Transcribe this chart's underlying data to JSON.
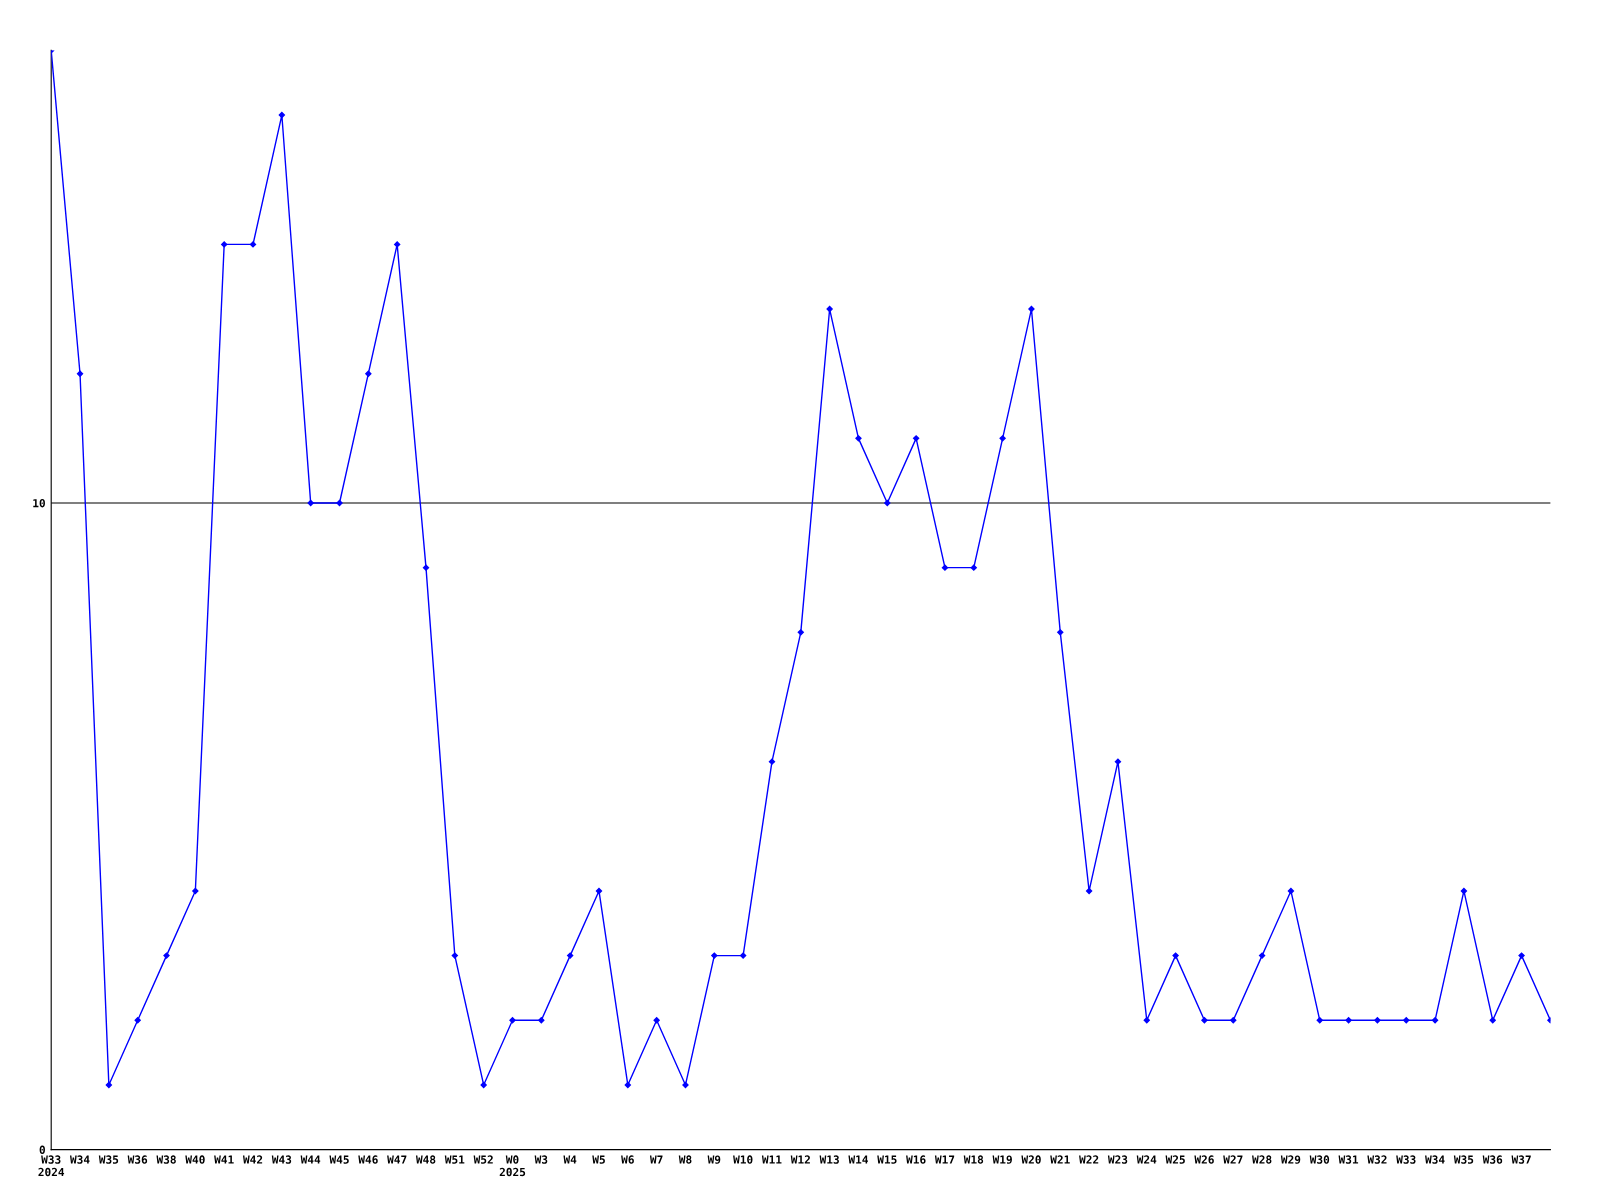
{
  "chart_data": {
    "type": "line",
    "categories": [
      "W33\n2024",
      "W34",
      "W35",
      "W36",
      "W38",
      "W40",
      "W41",
      "W42",
      "W43",
      "W44",
      "W45",
      "W46",
      "W47",
      "W48",
      "W51",
      "W52",
      "W0\n2025",
      "W3",
      "W4",
      "W5",
      "W6",
      "W7",
      "W8",
      "W9",
      "W10",
      "W11",
      "W12",
      "W13",
      "W14",
      "W15",
      "W16",
      "W17",
      "W18",
      "W19",
      "W20",
      "W21",
      "W22",
      "W23",
      "W24",
      "W25",
      "W26",
      "W27",
      "W28",
      "W29",
      "W30",
      "W31",
      "W32",
      "W33",
      "W34",
      "W35",
      "W36",
      "W37",
      null
    ],
    "series": [
      {
        "color": "#0000ff",
        "values": [
          17,
          12,
          1,
          2,
          3,
          4,
          14,
          14,
          16,
          10,
          10,
          12,
          14,
          9,
          3,
          1,
          2,
          2,
          3,
          4,
          1,
          2,
          1,
          3,
          3,
          6,
          8,
          13,
          11,
          10,
          11,
          9,
          9,
          11,
          13,
          8,
          4,
          6,
          2,
          3,
          2,
          2,
          3,
          4,
          2,
          2,
          2,
          2,
          2,
          4,
          2,
          3,
          2
        ]
      }
    ],
    "ylim": [
      0,
      17
    ],
    "yticks": [
      0,
      10
    ],
    "grid": "y",
    "marker": "diamond",
    "line_style": "solid",
    "legend": false
  }
}
